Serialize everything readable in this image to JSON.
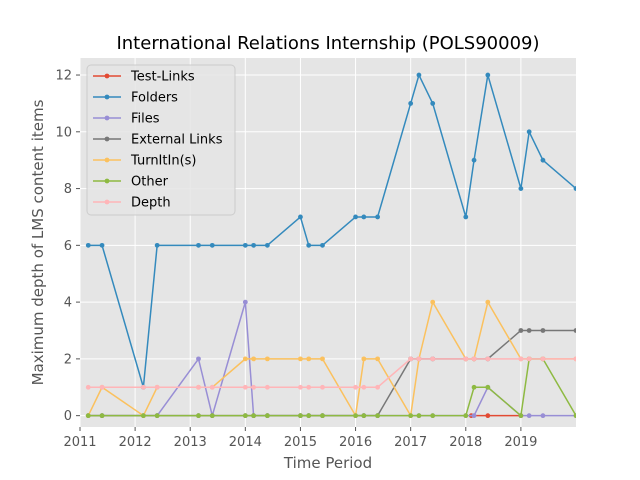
{
  "chart_data": {
    "type": "line",
    "title": "International Relations Internship (POLS90009)",
    "xlabel": "Time Period",
    "ylabel": "Maximum depth of LMS content items",
    "xlim": [
      2011.0,
      2020.0
    ],
    "ylim": [
      -0.4,
      12.6
    ],
    "x_ticks": [
      2011,
      2012,
      2013,
      2014,
      2015,
      2016,
      2017,
      2018,
      2019
    ],
    "y_ticks": [
      0,
      2,
      4,
      6,
      8,
      10,
      12
    ],
    "grid": true,
    "legend_position": "top-left",
    "series": [
      {
        "name": "Test-Links",
        "color": "#E24A33",
        "x": [
          2018.1,
          2018.4,
          2019.0
        ],
        "y": [
          0,
          0,
          0
        ]
      },
      {
        "name": "Folders",
        "color": "#348ABD",
        "x": [
          2011.15,
          2011.4,
          2012.15,
          2012.4,
          2013.15,
          2013.4,
          2014.0,
          2014.15,
          2014.4,
          2015.0,
          2015.15,
          2015.4,
          2016.0,
          2016.15,
          2016.4,
          2017.0,
          2017.15,
          2017.4,
          2018.0,
          2018.15,
          2018.4,
          2019.0,
          2019.15,
          2019.4,
          2020.0
        ],
        "y": [
          6,
          6,
          1,
          6,
          6,
          6,
          6,
          6,
          6,
          7,
          6,
          6,
          7,
          7,
          7,
          11,
          12,
          11,
          7,
          9,
          12,
          8,
          10,
          9,
          8
        ]
      },
      {
        "name": "Files",
        "color": "#988ED5",
        "x": [
          2011.15,
          2011.4,
          2012.15,
          2012.4,
          2013.15,
          2013.4,
          2014.0,
          2014.15,
          2014.4,
          2015.0,
          2015.15,
          2015.4,
          2016.0,
          2016.15,
          2016.4,
          2017.0,
          2017.15,
          2017.4,
          2018.0,
          2018.15,
          2018.4,
          2019.0,
          2019.15,
          2019.4,
          2020.0
        ],
        "y": [
          0,
          0,
          0,
          0,
          2,
          0,
          4,
          0,
          0,
          0,
          0,
          0,
          0,
          0,
          0,
          0,
          0,
          0,
          0,
          0,
          1,
          0,
          0,
          0,
          0
        ]
      },
      {
        "name": "External Links",
        "color": "#777777",
        "x": [
          2011.15,
          2011.4,
          2012.15,
          2012.4,
          2013.15,
          2013.4,
          2014.0,
          2014.15,
          2014.4,
          2015.0,
          2015.15,
          2015.4,
          2016.0,
          2016.15,
          2016.4,
          2017.0,
          2017.15,
          2017.4,
          2018.0,
          2018.15,
          2018.4,
          2019.0,
          2019.15,
          2019.4,
          2020.0
        ],
        "y": [
          0,
          0,
          0,
          0,
          0,
          0,
          0,
          0,
          0,
          0,
          0,
          0,
          0,
          0,
          0,
          2,
          2,
          2,
          2,
          2,
          2,
          3,
          3,
          3,
          3
        ]
      },
      {
        "name": "TurnItIn(s)",
        "color": "#FBC15E",
        "x": [
          2011.15,
          2011.4,
          2012.15,
          2012.4,
          2013.15,
          2013.4,
          2014.0,
          2014.15,
          2014.4,
          2015.0,
          2015.15,
          2015.4,
          2016.0,
          2016.15,
          2016.4,
          2017.0,
          2017.15,
          2017.4,
          2018.0,
          2018.15,
          2018.4,
          2019.0,
          2019.15,
          2019.4,
          2020.0
        ],
        "y": [
          0,
          1,
          0,
          1,
          1,
          1,
          2,
          2,
          2,
          2,
          2,
          2,
          0,
          2,
          2,
          0,
          2,
          4,
          2,
          2,
          4,
          2,
          2,
          2,
          2
        ]
      },
      {
        "name": "Other",
        "color": "#8EBA42",
        "x": [
          2011.15,
          2011.4,
          2012.15,
          2012.4,
          2013.15,
          2013.4,
          2014.0,
          2014.15,
          2014.4,
          2015.0,
          2015.15,
          2015.4,
          2016.0,
          2016.15,
          2016.4,
          2017.0,
          2017.15,
          2017.4,
          2018.0,
          2018.15,
          2018.4,
          2019.0,
          2019.15,
          2019.4,
          2020.0
        ],
        "y": [
          0,
          0,
          0,
          0,
          0,
          0,
          0,
          0,
          0,
          0,
          0,
          0,
          0,
          0,
          0,
          0,
          0,
          0,
          0,
          1,
          1,
          0,
          2,
          2,
          0
        ]
      },
      {
        "name": "Depth",
        "color": "#FFB5B8",
        "x": [
          2011.15,
          2011.4,
          2012.15,
          2012.4,
          2013.15,
          2013.4,
          2014.0,
          2014.15,
          2014.4,
          2015.0,
          2015.15,
          2015.4,
          2016.0,
          2016.15,
          2016.4,
          2017.0,
          2017.15,
          2017.4,
          2018.0,
          2018.15,
          2018.4,
          2019.0,
          2019.15,
          2019.4,
          2020.0
        ],
        "y": [
          1,
          1,
          1,
          1,
          1,
          1,
          1,
          1,
          1,
          1,
          1,
          1,
          1,
          1,
          1,
          2,
          2,
          2,
          2,
          2,
          2,
          2,
          2,
          2,
          2
        ]
      }
    ]
  }
}
